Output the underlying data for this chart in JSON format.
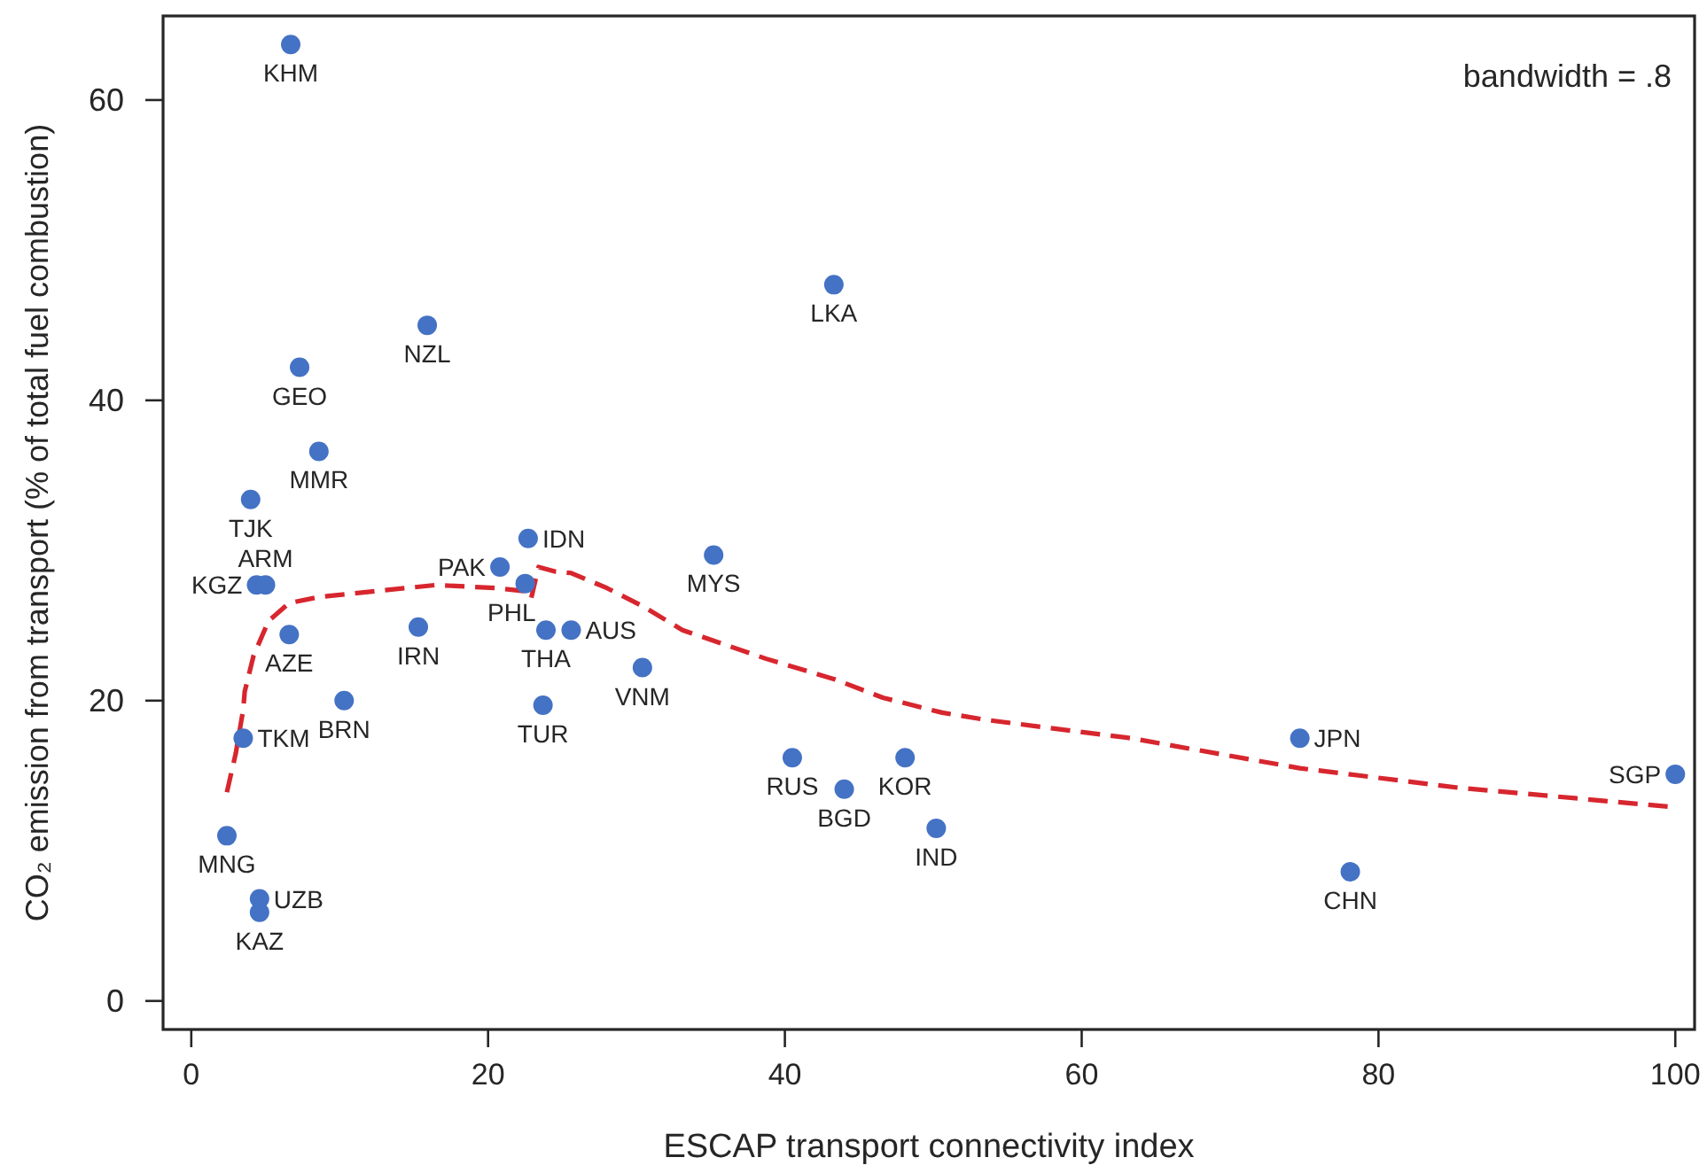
{
  "chart_data": {
    "type": "scatter",
    "xlabel": "ESCAP transport connectivity index",
    "ylabel": "CO₂ emission from transport (% of total fuel combustion)",
    "annotations": [
      "bandwidth = .8"
    ],
    "xlim": [
      -1.9,
      101.3
    ],
    "ylim": [
      -1.9,
      65.6
    ],
    "xticks": [
      0,
      20,
      40,
      60,
      80,
      100
    ],
    "yticks": [
      0,
      20,
      40,
      60
    ],
    "series": [
      {
        "marker": "circle",
        "color": "#4472c4",
        "x": [
          6.7,
          15.9,
          7.3,
          8.6,
          4.0,
          22.7,
          20.8,
          22.5,
          4.4,
          5.0,
          6.6,
          15.3,
          23.9,
          25.6,
          10.3,
          23.7,
          3.5,
          2.4,
          4.6,
          4.6,
          35.2,
          30.4,
          40.5,
          48.1,
          44.0,
          43.3,
          50.2,
          74.7,
          78.1,
          100
        ],
        "values": [
          63.7,
          45.0,
          42.2,
          36.6,
          33.4,
          30.8,
          28.9,
          27.8,
          27.7,
          27.7,
          24.4,
          24.9,
          24.7,
          24.7,
          20.0,
          19.7,
          17.5,
          11.0,
          5.9,
          6.8,
          29.7,
          22.2,
          16.2,
          16.2,
          14.1,
          47.7,
          11.5,
          17.5,
          8.6,
          15.1
        ],
        "value_labels": [
          "KHM",
          "NZL",
          "GEO",
          "MMR",
          "TJK",
          "IDN",
          "PAK",
          "PHL",
          "KGZ",
          "ARM",
          "AZE",
          "IRN",
          "THA",
          "AUS",
          "BRN",
          "TUR",
          "TKM",
          "MNG",
          "KAZ",
          "UZB",
          "MYS",
          "VNM",
          "RUS",
          "KOR",
          "BGD",
          "LKA",
          "IND",
          "JPN",
          "CHN",
          "SGP"
        ]
      },
      {
        "type": "line",
        "color": "#d7262e",
        "line_style": "dashed",
        "x": [
          2.4,
          3.0,
          3.5,
          3.6,
          4.2,
          5.2,
          6.6,
          8.6,
          12.5,
          16.5,
          20.5,
          22.4,
          22.9,
          23.4,
          24.5,
          25.6,
          28.0,
          30.4,
          33.1,
          38.7,
          43.4,
          46.6,
          50.6,
          53.7,
          63.3,
          74.7,
          85.4,
          100
        ],
        "values": [
          13.9,
          16.5,
          19.4,
          20.6,
          23.0,
          25.3,
          26.5,
          26.9,
          27.3,
          27.7,
          27.5,
          27.3,
          26.8,
          28.9,
          28.6,
          28.5,
          27.5,
          26.3,
          24.7,
          22.8,
          21.4,
          20.2,
          19.2,
          18.7,
          17.5,
          15.5,
          14.2,
          12.9
        ]
      }
    ]
  }
}
